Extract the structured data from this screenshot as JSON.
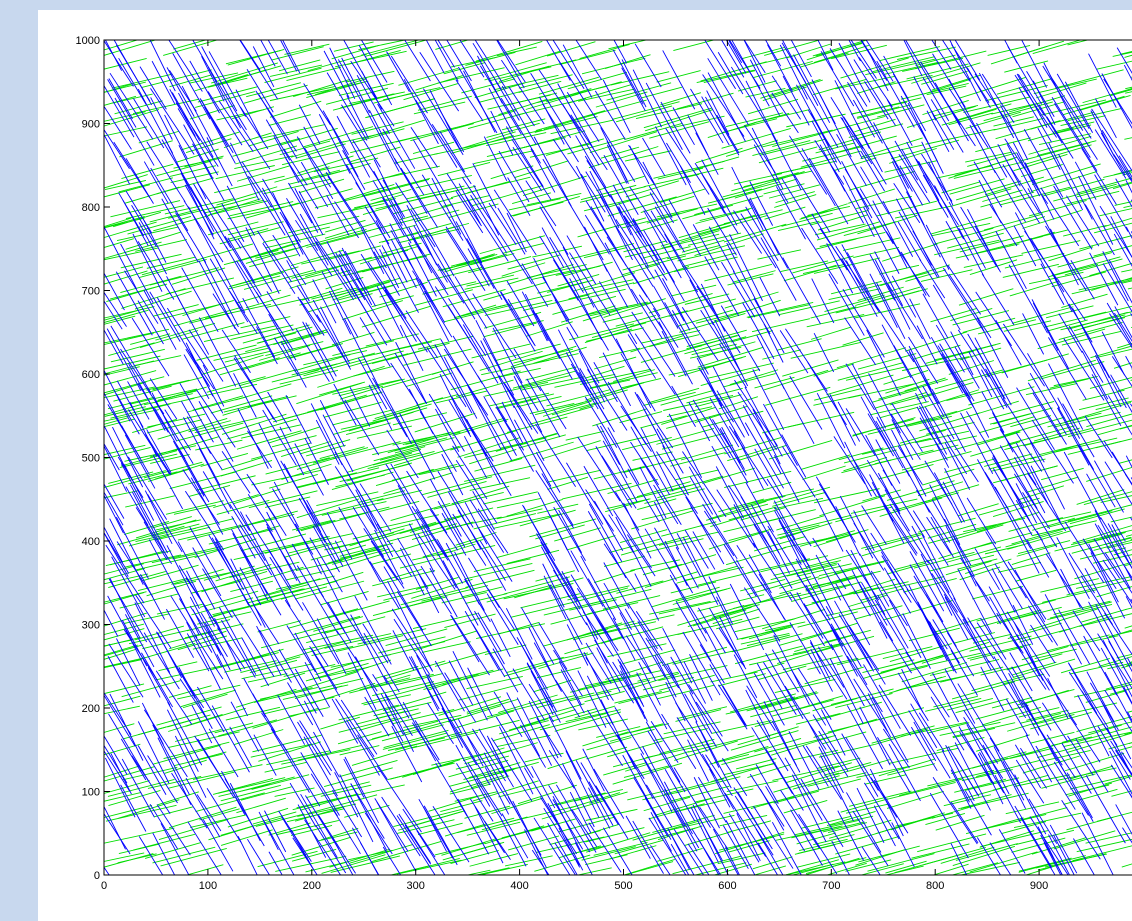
{
  "colors": {
    "page_background": "#c8d8ee",
    "figure_background": "#ffffff",
    "axes_color": "#000000",
    "series_a_color": "#0000ff",
    "series_b_color": "#00dd00"
  },
  "chart_data": {
    "type": "line",
    "title": "",
    "xlabel": "",
    "ylabel": "",
    "xlim": [
      0,
      1000
    ],
    "ylim": [
      0,
      1000
    ],
    "grid": false,
    "legend": "none",
    "x_ticks": [
      0,
      100,
      200,
      300,
      400,
      500,
      600,
      700,
      800,
      900
    ],
    "y_ticks": [
      0,
      100,
      200,
      300,
      400,
      500,
      600,
      700,
      800,
      900,
      1000
    ],
    "series": [
      {
        "color": "#0000ff",
        "style": "short line segments",
        "approx_segment_count": 2000,
        "approx_segment_length": 70,
        "approx_orientation_deg": 115
      },
      {
        "color": "#00dd00",
        "style": "short line segments",
        "approx_segment_count": 2200,
        "approx_segment_length": 55,
        "approx_orientation_deg": 18
      }
    ]
  }
}
